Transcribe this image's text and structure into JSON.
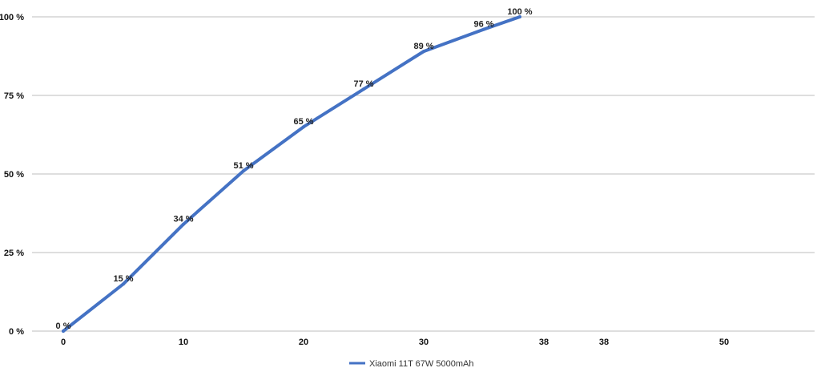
{
  "chart_data": {
    "type": "line",
    "title": "",
    "xlabel": "",
    "ylabel": "",
    "grid": true,
    "legend_position": "bottom",
    "x_tick_labels": [
      "0",
      "10",
      "20",
      "30",
      "38",
      "38",
      "50"
    ],
    "y_tick_labels": [
      "0 %",
      "25 %",
      "50 %",
      "75 %",
      "100 %"
    ],
    "ylim": [
      0,
      100
    ],
    "series": [
      {
        "name": "Xiaomi 11T 67W 5000mAh",
        "color": "#4472C4",
        "x": [
          0,
          5,
          10,
          15,
          20,
          25,
          30,
          35,
          38
        ],
        "values": [
          0,
          15,
          34,
          51,
          65,
          77,
          89,
          96,
          100
        ],
        "labels": [
          "0 %",
          "15 %",
          "34 %",
          "51 %",
          "65 %",
          "77 %",
          "89 %",
          "96 %",
          "100 %"
        ]
      }
    ]
  }
}
